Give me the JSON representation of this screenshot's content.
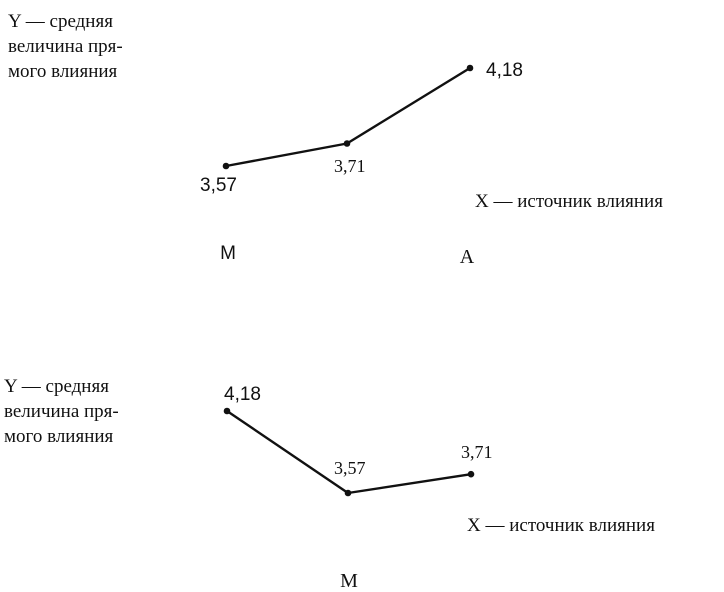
{
  "chart_data": [
    {
      "type": "line",
      "ylabel": [
        "Y — средняя",
        "величина пря-",
        "мого влияния"
      ],
      "xlabel": "X — источник влияния",
      "categories": [
        "M",
        "",
        "A"
      ],
      "values": [
        3.57,
        3.71,
        4.18
      ],
      "data_labels": [
        "3,57",
        "3,71",
        "4,18"
      ],
      "axes_visible": false,
      "grid": false
    },
    {
      "type": "line",
      "ylabel": [
        "Y — средняя",
        "величина пря-",
        "мого влияния"
      ],
      "xlabel": "X — источник влияния",
      "categories": [
        "",
        "M",
        ""
      ],
      "values": [
        4.18,
        3.57,
        3.71
      ],
      "data_labels": [
        "4,18",
        "3,57",
        "3,71"
      ],
      "axes_visible": false,
      "grid": false
    }
  ]
}
